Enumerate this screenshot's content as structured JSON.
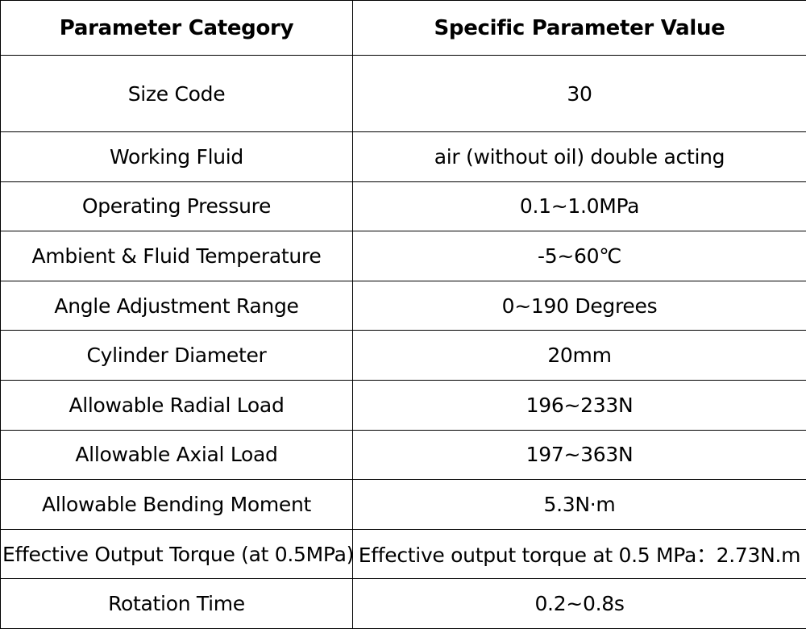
{
  "table": {
    "headers": [
      "Parameter Category",
      "Specific Parameter Value"
    ],
    "rows": [
      {
        "category": "Size Code",
        "value": "30"
      },
      {
        "category": "Working Fluid",
        "value": "air (without oil) double acting"
      },
      {
        "category": "Operating Pressure",
        "value": "0.1~1.0MPa"
      },
      {
        "category": "Ambient & Fluid Temperature",
        "value": "-5~60℃"
      },
      {
        "category": "Angle Adjustment Range",
        "value": "0~190 Degrees"
      },
      {
        "category": "Cylinder Diameter",
        "value": "20mm"
      },
      {
        "category": "Allowable Radial Load",
        "value": "196~233N"
      },
      {
        "category": "Allowable Axial Load",
        "value": "197~363N"
      },
      {
        "category": "Allowable Bending Moment",
        "value": "5.3N·m"
      },
      {
        "category": "Effective Output Torque (at 0.5MPa)",
        "value": "Effective output torque at 0.5 MPa：2.73N.m"
      },
      {
        "category": "Rotation Time",
        "value": "0.2~0.8s"
      }
    ]
  }
}
